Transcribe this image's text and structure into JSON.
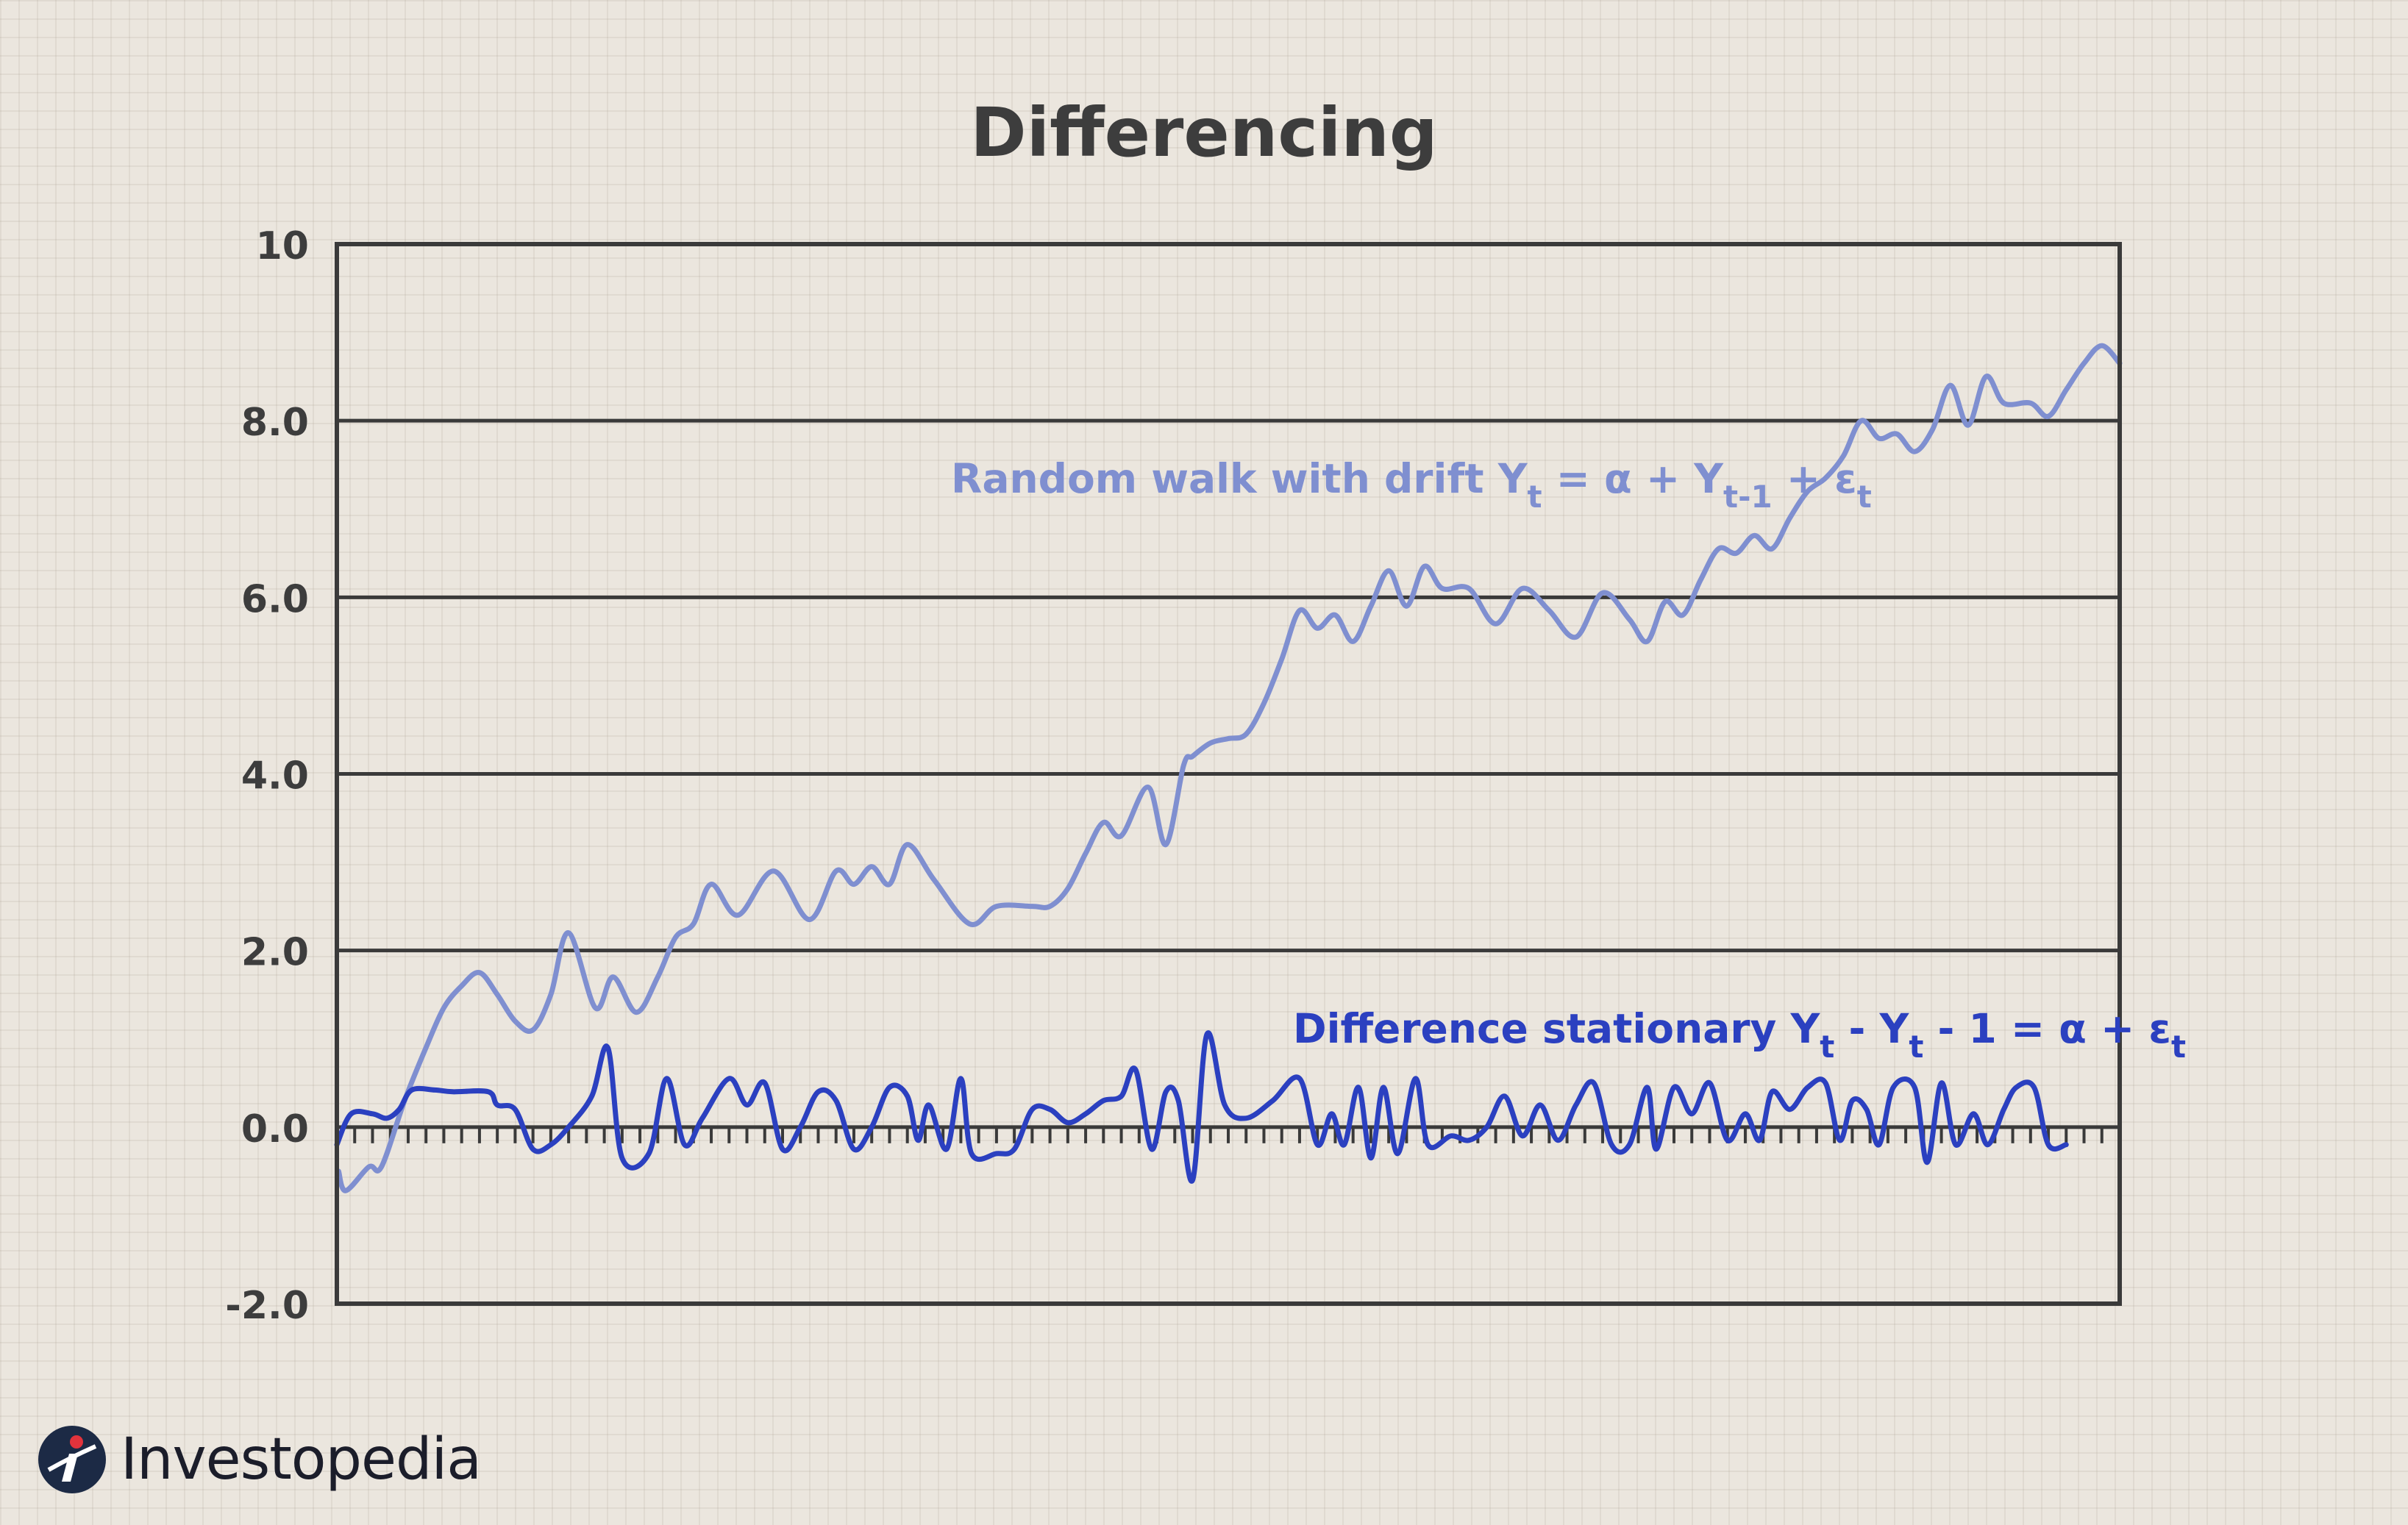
{
  "chart_data": {
    "type": "line",
    "title": "Differencing",
    "ylim": [
      -2.0,
      10
    ],
    "yticks": [
      "-2.0",
      "0.0",
      "2.0",
      "4.0",
      "6.0",
      "8.0",
      "10"
    ],
    "ytick_values": [
      -2,
      0,
      2,
      4,
      6,
      8,
      10
    ],
    "grid": "horizontal",
    "colors": {
      "random_walk": "#7f8fd0",
      "difference": "#2b40c0",
      "axis": "#3a3a3a",
      "text": "#3d3d3d"
    },
    "annotations": {
      "random_walk": {
        "main": "Random walk with drift Y",
        "sub1": "t",
        "mid1": " = α + Y",
        "sub2": "t-1",
        "mid2": " + ε",
        "sub3": "t"
      },
      "difference": {
        "main": "Difference stationary Y",
        "sub1": "t",
        "mid1": " - Y",
        "sub2": "t",
        "mid2": " - 1 = α + ε",
        "sub3": "t"
      }
    },
    "series": [
      {
        "key": "random_walk",
        "values": [
          [
            0.1,
            -0.5
          ],
          [
            0.5,
            -0.72
          ],
          [
            1.8,
            -0.45
          ],
          [
            2.5,
            -0.45
          ],
          [
            3.8,
            0.3
          ],
          [
            5.0,
            0.9
          ],
          [
            6.0,
            1.35
          ],
          [
            7.0,
            1.6
          ],
          [
            8.0,
            1.75
          ],
          [
            9.0,
            1.5
          ],
          [
            10.0,
            1.2
          ],
          [
            11.0,
            1.1
          ],
          [
            12.0,
            1.5
          ],
          [
            13.0,
            2.2
          ],
          [
            14.5,
            1.35
          ],
          [
            15.5,
            1.7
          ],
          [
            16.8,
            1.3
          ],
          [
            18.0,
            1.7
          ],
          [
            19.0,
            2.15
          ],
          [
            20.0,
            2.3
          ],
          [
            21.0,
            2.75
          ],
          [
            22.5,
            2.4
          ],
          [
            24.5,
            2.9
          ],
          [
            26.5,
            2.35
          ],
          [
            28.0,
            2.9
          ],
          [
            29.0,
            2.75
          ],
          [
            30.0,
            2.95
          ],
          [
            31.0,
            2.75
          ],
          [
            32.0,
            3.2
          ],
          [
            33.5,
            2.8
          ],
          [
            35.5,
            2.3
          ],
          [
            37.0,
            2.5
          ],
          [
            39.0,
            2.5
          ],
          [
            40.0,
            2.5
          ],
          [
            41.0,
            2.7
          ],
          [
            42.0,
            3.1
          ],
          [
            43.0,
            3.45
          ],
          [
            44.0,
            3.3
          ],
          [
            45.5,
            3.85
          ],
          [
            46.5,
            3.2
          ],
          [
            47.5,
            4.1
          ],
          [
            48.0,
            4.2
          ],
          [
            49.0,
            4.35
          ],
          [
            50.0,
            4.4
          ],
          [
            51.0,
            4.45
          ],
          [
            52.0,
            4.8
          ],
          [
            53.0,
            5.3
          ],
          [
            54.0,
            5.85
          ],
          [
            55.0,
            5.65
          ],
          [
            56.0,
            5.8
          ],
          [
            57.0,
            5.5
          ],
          [
            58.0,
            5.9
          ],
          [
            59.0,
            6.3
          ],
          [
            60.0,
            5.9
          ],
          [
            61.0,
            6.35
          ],
          [
            62.0,
            6.1
          ],
          [
            63.5,
            6.1
          ],
          [
            65.0,
            5.7
          ],
          [
            66.5,
            6.1
          ],
          [
            68.0,
            5.85
          ],
          [
            69.5,
            5.55
          ],
          [
            71.0,
            6.05
          ],
          [
            72.5,
            5.75
          ],
          [
            73.5,
            5.5
          ],
          [
            74.5,
            5.95
          ],
          [
            75.5,
            5.8
          ],
          [
            76.5,
            6.2
          ],
          [
            77.5,
            6.55
          ],
          [
            78.5,
            6.5
          ],
          [
            79.5,
            6.7
          ],
          [
            80.5,
            6.55
          ],
          [
            81.5,
            6.9
          ],
          [
            82.5,
            7.2
          ],
          [
            83.5,
            7.35
          ],
          [
            84.5,
            7.6
          ],
          [
            85.5,
            8.0
          ],
          [
            86.5,
            7.8
          ],
          [
            87.5,
            7.85
          ],
          [
            88.5,
            7.65
          ],
          [
            89.5,
            7.9
          ],
          [
            90.5,
            8.4
          ],
          [
            91.5,
            7.95
          ],
          [
            92.5,
            8.5
          ],
          [
            93.5,
            8.2
          ],
          [
            95.0,
            8.2
          ],
          [
            96.0,
            8.05
          ],
          [
            97.0,
            8.35
          ],
          [
            98.0,
            8.65
          ],
          [
            99.0,
            8.85
          ],
          [
            100.0,
            8.65
          ]
        ]
      },
      {
        "key": "difference",
        "values": [
          [
            0.0,
            -0.2
          ],
          [
            0.8,
            0.15
          ],
          [
            2.0,
            0.15
          ],
          [
            2.8,
            0.1
          ],
          [
            3.5,
            0.2
          ],
          [
            4.2,
            0.42
          ],
          [
            5.5,
            0.42
          ],
          [
            6.5,
            0.4
          ],
          [
            8.5,
            0.4
          ],
          [
            9.0,
            0.25
          ],
          [
            10.0,
            0.2
          ],
          [
            11.0,
            -0.25
          ],
          [
            12.0,
            -0.2
          ],
          [
            13.0,
            0.0
          ],
          [
            14.3,
            0.35
          ],
          [
            15.2,
            0.9
          ],
          [
            16.0,
            -0.35
          ],
          [
            17.5,
            -0.3
          ],
          [
            18.5,
            0.55
          ],
          [
            19.5,
            -0.2
          ],
          [
            20.5,
            0.1
          ],
          [
            22.0,
            0.55
          ],
          [
            23.0,
            0.25
          ],
          [
            24.0,
            0.5
          ],
          [
            25.0,
            -0.25
          ],
          [
            26.0,
            0.0
          ],
          [
            27.0,
            0.4
          ],
          [
            28.0,
            0.3
          ],
          [
            29.0,
            -0.25
          ],
          [
            30.0,
            0.0
          ],
          [
            31.0,
            0.45
          ],
          [
            32.0,
            0.35
          ],
          [
            32.6,
            -0.15
          ],
          [
            33.2,
            0.25
          ],
          [
            34.2,
            -0.25
          ],
          [
            35.0,
            0.55
          ],
          [
            35.6,
            -0.3
          ],
          [
            37.0,
            -0.3
          ],
          [
            38.0,
            -0.25
          ],
          [
            39.0,
            0.2
          ],
          [
            40.0,
            0.2
          ],
          [
            41.0,
            0.05
          ],
          [
            42.0,
            0.15
          ],
          [
            43.0,
            0.3
          ],
          [
            44.0,
            0.35
          ],
          [
            44.8,
            0.65
          ],
          [
            45.7,
            -0.25
          ],
          [
            46.5,
            0.4
          ],
          [
            47.2,
            0.3
          ],
          [
            48.0,
            -0.6
          ],
          [
            48.8,
            1.05
          ],
          [
            49.8,
            0.25
          ],
          [
            51.0,
            0.1
          ],
          [
            52.5,
            0.3
          ],
          [
            54.0,
            0.55
          ],
          [
            55.0,
            -0.2
          ],
          [
            55.8,
            0.15
          ],
          [
            56.5,
            -0.2
          ],
          [
            57.3,
            0.45
          ],
          [
            58.0,
            -0.35
          ],
          [
            58.7,
            0.45
          ],
          [
            59.5,
            -0.3
          ],
          [
            60.5,
            0.55
          ],
          [
            61.2,
            -0.2
          ],
          [
            62.5,
            -0.1
          ],
          [
            63.5,
            -0.15
          ],
          [
            64.5,
            0.0
          ],
          [
            65.5,
            0.35
          ],
          [
            66.5,
            -0.1
          ],
          [
            67.5,
            0.25
          ],
          [
            68.5,
            -0.15
          ],
          [
            69.5,
            0.25
          ],
          [
            70.5,
            0.5
          ],
          [
            71.5,
            -0.2
          ],
          [
            72.5,
            -0.2
          ],
          [
            73.5,
            0.45
          ],
          [
            74.0,
            -0.25
          ],
          [
            75.0,
            0.45
          ],
          [
            76.0,
            0.15
          ],
          [
            77.0,
            0.5
          ],
          [
            78.0,
            -0.15
          ],
          [
            79.0,
            0.15
          ],
          [
            79.8,
            -0.15
          ],
          [
            80.5,
            0.4
          ],
          [
            81.5,
            0.2
          ],
          [
            82.5,
            0.45
          ],
          [
            83.5,
            0.5
          ],
          [
            84.3,
            -0.15
          ],
          [
            85.0,
            0.3
          ],
          [
            85.8,
            0.2
          ],
          [
            86.5,
            -0.2
          ],
          [
            87.3,
            0.45
          ],
          [
            88.5,
            0.45
          ],
          [
            89.2,
            -0.4
          ],
          [
            90.0,
            0.5
          ],
          [
            90.8,
            -0.2
          ],
          [
            91.8,
            0.15
          ],
          [
            92.6,
            -0.2
          ],
          [
            93.5,
            0.2
          ],
          [
            94.2,
            0.45
          ],
          [
            95.2,
            0.45
          ],
          [
            96.0,
            -0.2
          ],
          [
            97.0,
            -0.2
          ]
        ]
      }
    ]
  },
  "brand": {
    "name": "Investopedia"
  }
}
